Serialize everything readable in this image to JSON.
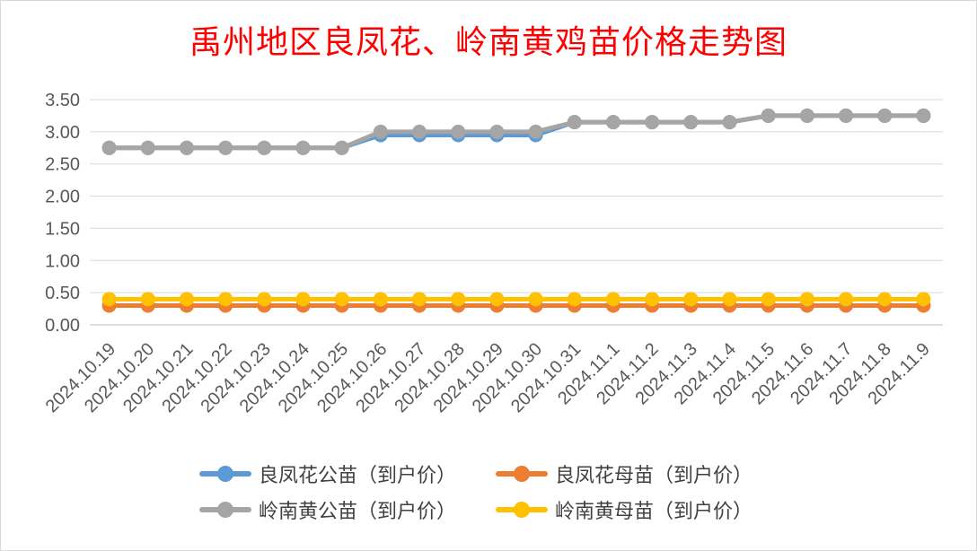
{
  "chart_data": {
    "type": "line",
    "title": "禹州地区良凤花、岭南黄鸡苗价格走势图",
    "categories": [
      "2024.10.19",
      "2024.10.20",
      "2024.10.21",
      "2024.10.22",
      "2024.10.23",
      "2024.10.24",
      "2024.10.25",
      "2024.10.26",
      "2024.10.27",
      "2024.10.28",
      "2024.10.29",
      "2024.10.30",
      "2024.10.31",
      "2024.11.1",
      "2024.11.2",
      "2024.11.3",
      "2024.11.4",
      "2024.11.5",
      "2024.11.6",
      "2024.11.7",
      "2024.11.8",
      "2024.11.9"
    ],
    "ylim": [
      0,
      3.5
    ],
    "yticks": [
      "0.00",
      "0.50",
      "1.00",
      "1.50",
      "2.00",
      "2.50",
      "3.00",
      "3.50"
    ],
    "grid": true,
    "legend_position": "bottom",
    "series": [
      {
        "name": "良凤花公苗（到户价）",
        "color": "#5b9bd5",
        "values": [
          2.75,
          2.75,
          2.75,
          2.75,
          2.75,
          2.75,
          2.75,
          2.95,
          2.95,
          2.95,
          2.95,
          2.95,
          3.15,
          3.15,
          3.15,
          3.15,
          3.15,
          3.25,
          3.25,
          3.25,
          3.25,
          3.25
        ]
      },
      {
        "name": "良凤花母苗（到户价）",
        "color": "#ed7d31",
        "values": [
          0.3,
          0.3,
          0.3,
          0.3,
          0.3,
          0.3,
          0.3,
          0.3,
          0.3,
          0.3,
          0.3,
          0.3,
          0.3,
          0.3,
          0.3,
          0.3,
          0.3,
          0.3,
          0.3,
          0.3,
          0.3,
          0.3
        ]
      },
      {
        "name": "岭南黄公苗（到户价）",
        "color": "#a5a5a5",
        "values": [
          2.75,
          2.75,
          2.75,
          2.75,
          2.75,
          2.75,
          2.75,
          3.0,
          3.0,
          3.0,
          3.0,
          3.0,
          3.15,
          3.15,
          3.15,
          3.15,
          3.15,
          3.25,
          3.25,
          3.25,
          3.25,
          3.25
        ]
      },
      {
        "name": "岭南黄母苗（到户价）",
        "color": "#ffc000",
        "values": [
          0.4,
          0.4,
          0.4,
          0.4,
          0.4,
          0.4,
          0.4,
          0.4,
          0.4,
          0.4,
          0.4,
          0.4,
          0.4,
          0.4,
          0.4,
          0.4,
          0.4,
          0.4,
          0.4,
          0.4,
          0.4,
          0.4
        ]
      }
    ]
  }
}
